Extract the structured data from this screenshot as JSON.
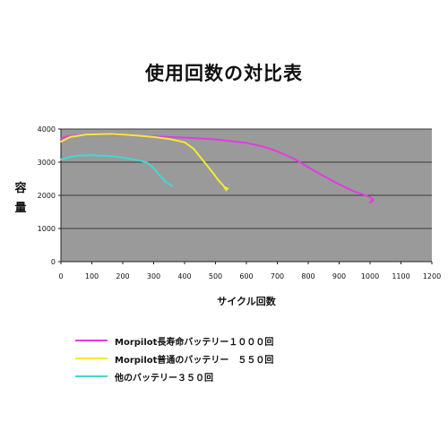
{
  "chart_data": {
    "type": "line",
    "title": "使用回数の対比表",
    "xlabel": "サイクル回数",
    "ylabel": "容量",
    "xlim": [
      0,
      1200
    ],
    "ylim": [
      0,
      4000
    ],
    "xticks": [
      0,
      100,
      200,
      300,
      400,
      500,
      600,
      700,
      800,
      900,
      1000,
      1100,
      1200
    ],
    "yticks": [
      0,
      1000,
      2000,
      3000,
      4000
    ],
    "grid": true,
    "plot_background": "#9a9a9a",
    "legend_position": "bottom-left",
    "series": [
      {
        "name": "Morpilot長寿命バッテリー１０００回",
        "color": "#e23ce0",
        "x": [
          0,
          20,
          50,
          100,
          150,
          200,
          300,
          400,
          500,
          600,
          650,
          700,
          750,
          800,
          850,
          900,
          950,
          980,
          1000,
          1010,
          1000,
          1010
        ],
        "y": [
          3700,
          3780,
          3810,
          3830,
          3830,
          3820,
          3780,
          3740,
          3690,
          3580,
          3480,
          3330,
          3120,
          2850,
          2580,
          2330,
          2110,
          2020,
          1950,
          1880,
          1780,
          1850
        ]
      },
      {
        "name": "Morpilot普通のバッテリー　５５０回",
        "color": "#f3ea34",
        "x": [
          0,
          30,
          80,
          120,
          160,
          200,
          250,
          300,
          350,
          400,
          430,
          460,
          490,
          510,
          525,
          535,
          530,
          540
        ],
        "y": [
          3620,
          3760,
          3830,
          3840,
          3850,
          3830,
          3800,
          3760,
          3700,
          3600,
          3400,
          3050,
          2700,
          2450,
          2300,
          2150,
          2250,
          2200
        ]
      },
      {
        "name": "他のバッテリー３５０回",
        "color": "#46d6d2",
        "x": [
          0,
          30,
          60,
          100,
          150,
          200,
          250,
          280,
          300,
          320,
          340,
          360
        ],
        "y": [
          3080,
          3160,
          3200,
          3210,
          3190,
          3140,
          3060,
          2980,
          2820,
          2600,
          2400,
          2280
        ]
      }
    ]
  }
}
